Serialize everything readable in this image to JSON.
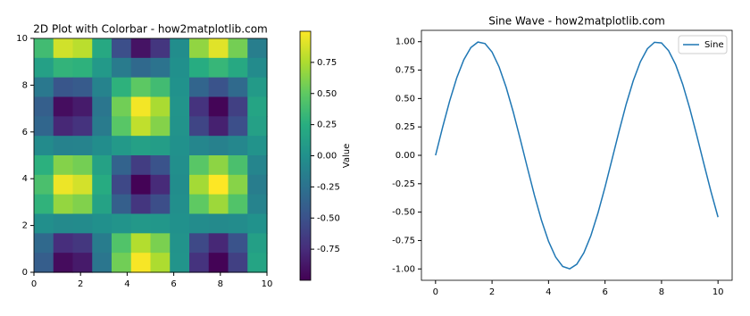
{
  "chart_data": [
    {
      "type": "heatmap",
      "title": "2D Plot with Colorbar - how2matplotlib.com",
      "colormap": "viridis",
      "origin": "upper",
      "xlim": [
        0,
        10
      ],
      "ylim": [
        0,
        10
      ],
      "xticks": [
        0,
        2,
        4,
        6,
        8,
        10
      ],
      "yticks": [
        0,
        2,
        4,
        6,
        8,
        10
      ],
      "z": [
        [
          0.37,
          0.86,
          0.79,
          0.2,
          -0.52,
          -0.9,
          -0.69,
          -0.03,
          0.66,
          0.91,
          0.57,
          -0.15
        ],
        [
          0.13,
          0.3,
          0.28,
          0.07,
          -0.18,
          -0.32,
          -0.24,
          -0.01,
          0.23,
          0.32,
          0.2,
          -0.05
        ],
        [
          -0.2,
          -0.47,
          -0.43,
          -0.11,
          0.28,
          0.49,
          0.37,
          0.01,
          -0.35,
          -0.49,
          -0.31,
          0.08
        ],
        [
          -0.4,
          -0.93,
          -0.85,
          -0.22,
          0.56,
          0.97,
          0.74,
          0.03,
          -0.71,
          -0.98,
          -0.62,
          0.16
        ],
        [
          -0.34,
          -0.78,
          -0.71,
          -0.18,
          0.47,
          0.81,
          0.62,
          0.02,
          -0.59,
          -0.82,
          -0.52,
          0.13
        ],
        [
          -0.05,
          -0.12,
          -0.11,
          -0.03,
          0.07,
          0.13,
          0.1,
          0.0,
          -0.09,
          -0.13,
          -0.08,
          0.02
        ],
        [
          0.27,
          0.62,
          0.57,
          0.14,
          -0.37,
          -0.64,
          -0.49,
          -0.02,
          0.47,
          0.65,
          0.41,
          -0.1
        ],
        [
          0.41,
          0.95,
          0.87,
          0.22,
          -0.57,
          -0.99,
          -0.76,
          -0.03,
          0.72,
          1.0,
          0.63,
          -0.16
        ],
        [
          0.29,
          0.67,
          0.61,
          0.15,
          -0.4,
          -0.69,
          -0.53,
          -0.02,
          0.5,
          0.7,
          0.44,
          -0.11
        ],
        [
          -0.02,
          -0.06,
          -0.05,
          -0.01,
          0.03,
          0.06,
          0.05,
          0.0,
          -0.04,
          -0.06,
          -0.04,
          0.01
        ],
        [
          -0.32,
          -0.74,
          -0.68,
          -0.17,
          0.44,
          0.77,
          0.59,
          0.02,
          -0.56,
          -0.78,
          -0.49,
          0.12
        ],
        [
          -0.41,
          -0.94,
          -0.86,
          -0.22,
          0.56,
          0.98,
          0.75,
          0.03,
          -0.71,
          -0.99,
          -0.62,
          0.16
        ]
      ],
      "colorbar": {
        "label": "Value",
        "lim": [
          -1,
          1
        ],
        "ticks": [
          {
            "value": -0.75,
            "label": "-0.75"
          },
          {
            "value": -0.5,
            "label": "-0.50"
          },
          {
            "value": -0.25,
            "label": "-0.25"
          },
          {
            "value": 0,
            "label": "0.00"
          },
          {
            "value": 0.25,
            "label": "0.25"
          },
          {
            "value": 0.5,
            "label": "0.50"
          },
          {
            "value": 0.75,
            "label": "0.75"
          }
        ]
      }
    },
    {
      "type": "line",
      "title": "Sine Wave - how2matplotlib.com",
      "legend": "upper right",
      "x": [
        0,
        0.25,
        0.5,
        0.75,
        1,
        1.25,
        1.5,
        1.75,
        2,
        2.25,
        2.5,
        2.75,
        3,
        3.25,
        3.5,
        3.75,
        4,
        4.25,
        4.5,
        4.75,
        5,
        5.25,
        5.5,
        5.75,
        6,
        6.25,
        6.5,
        6.75,
        7,
        7.25,
        7.5,
        7.75,
        8,
        8.25,
        8.5,
        8.75,
        9,
        9.25,
        9.5,
        9.75,
        10
      ],
      "series": [
        {
          "name": "Sine",
          "color": "#1f77b4",
          "values": [
            0,
            0.247,
            0.479,
            0.682,
            0.841,
            0.949,
            0.997,
            0.984,
            0.909,
            0.778,
            0.598,
            0.382,
            0.141,
            -0.108,
            -0.351,
            -0.572,
            -0.757,
            -0.895,
            -0.978,
            -0.999,
            -0.959,
            -0.859,
            -0.706,
            -0.508,
            -0.279,
            -0.033,
            0.215,
            0.451,
            0.657,
            0.823,
            0.938,
            0.995,
            0.989,
            0.921,
            0.798,
            0.625,
            0.412,
            0.173,
            -0.075,
            -0.319,
            -0.544
          ]
        }
      ],
      "xlim": [
        -0.5,
        10.5
      ],
      "ylim": [
        -1.1,
        1.1
      ],
      "xticks": [
        0,
        2,
        4,
        6,
        8,
        10
      ],
      "yticks": [
        {
          "value": -1,
          "label": "-1.00"
        },
        {
          "value": -0.75,
          "label": "-0.75"
        },
        {
          "value": -0.5,
          "label": "-0.50"
        },
        {
          "value": -0.25,
          "label": "-0.25"
        },
        {
          "value": 0,
          "label": "0.00"
        },
        {
          "value": 0.25,
          "label": "0.25"
        },
        {
          "value": 0.5,
          "label": "0.50"
        },
        {
          "value": 0.75,
          "label": "0.75"
        },
        {
          "value": 1,
          "label": "1.00"
        }
      ]
    }
  ]
}
